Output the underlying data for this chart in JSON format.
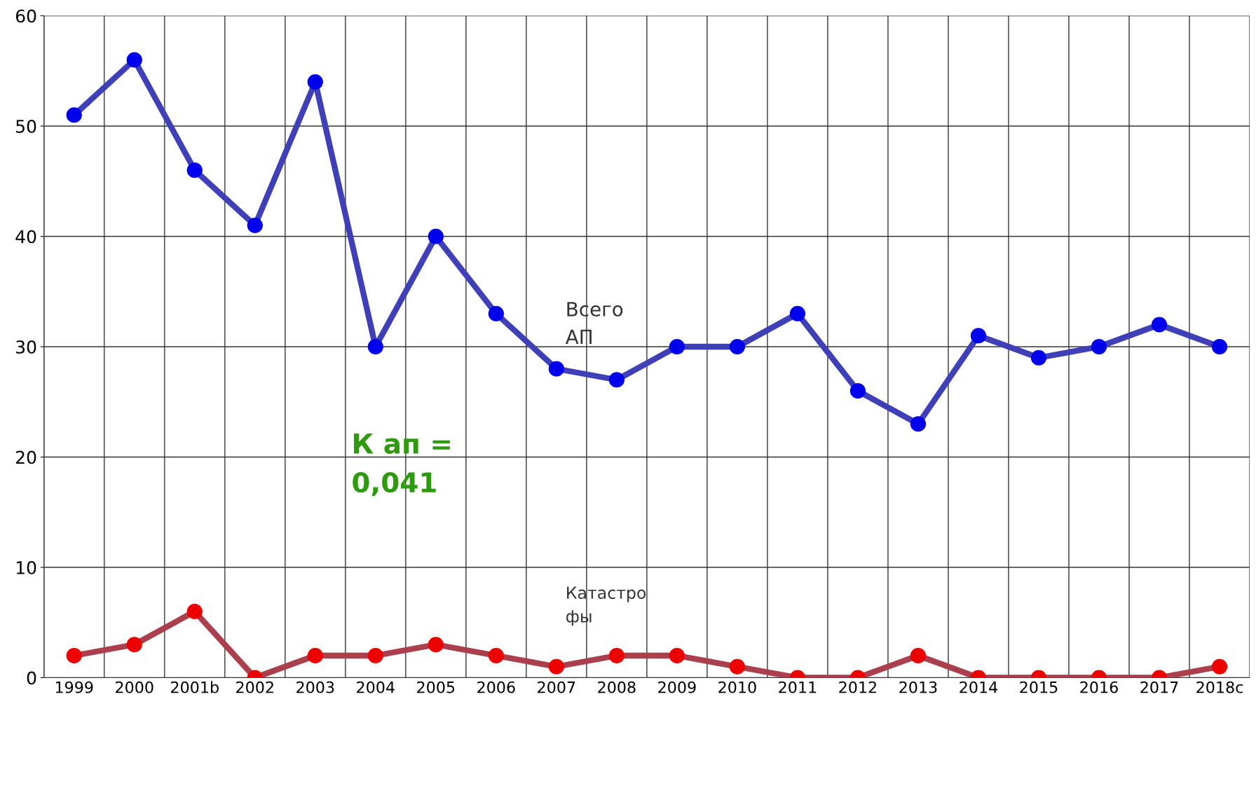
{
  "chart_data": {
    "type": "line",
    "categories": [
      "1999",
      "2000",
      "2001b",
      "2002",
      "2003",
      "2004",
      "2005",
      "2006",
      "2007",
      "2008",
      "2009",
      "2010",
      "2011",
      "2012",
      "2013",
      "2014",
      "2015",
      "2016",
      "2017",
      "2018c"
    ],
    "series": [
      {
        "name": "Всего\nАП",
        "color": "#0000ee",
        "values": [
          51,
          56,
          46,
          41,
          54,
          30,
          40,
          33,
          28,
          27,
          30,
          30,
          33,
          26,
          23,
          31,
          29,
          30,
          32,
          30
        ]
      },
      {
        "name": "Катастро\nфы",
        "color": "#ee0000",
        "values": [
          2,
          3,
          6,
          0,
          2,
          2,
          3,
          2,
          1,
          2,
          2,
          1,
          0,
          0,
          2,
          0,
          0,
          0,
          0,
          1
        ]
      }
    ],
    "ylim": [
      0,
      60
    ],
    "yticks": [
      0,
      10,
      20,
      30,
      40,
      50,
      60
    ],
    "grid": true,
    "marker": "circle",
    "line_style": "solid",
    "annotations": [
      "К ап =\n0,041"
    ]
  }
}
